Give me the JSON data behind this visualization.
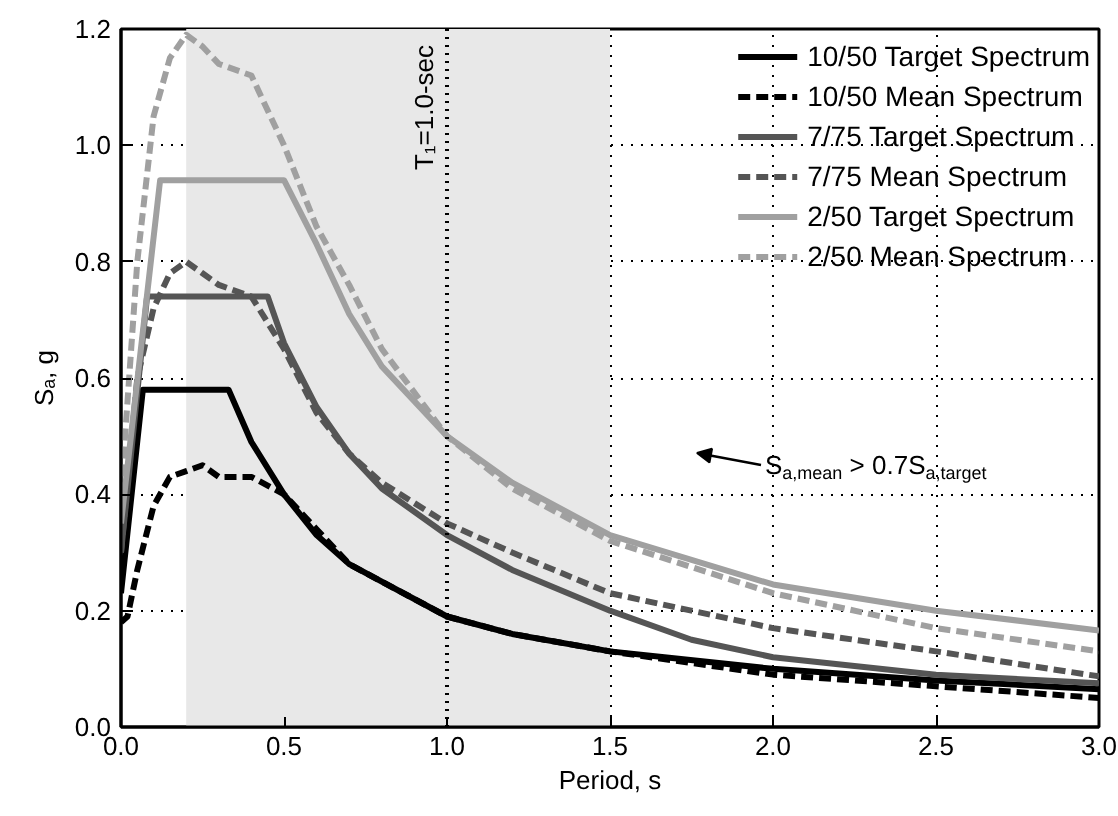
{
  "chart_data": {
    "type": "line",
    "xlabel": "Period, s",
    "ylabel": "Sₐ, g",
    "xlim": [
      0,
      3
    ],
    "ylim": [
      0,
      1.2
    ],
    "xticks": [
      {
        "value": 0,
        "label": "0.0"
      },
      {
        "value": 0.5,
        "label": "0.5"
      },
      {
        "value": 1,
        "label": "1.0"
      },
      {
        "value": 1.5,
        "label": "1.5"
      },
      {
        "value": 2,
        "label": "2.0"
      },
      {
        "value": 2.5,
        "label": "2.5"
      },
      {
        "value": 3,
        "label": "3.0"
      }
    ],
    "yticks": [
      {
        "value": 0,
        "label": "0.0"
      },
      {
        "value": 0.2,
        "label": "0.2"
      },
      {
        "value": 0.4,
        "label": "0.4"
      },
      {
        "value": 0.6,
        "label": "0.6"
      },
      {
        "value": 0.8,
        "label": "0.8"
      },
      {
        "value": 1,
        "label": "1.0"
      },
      {
        "value": 1.2,
        "label": "1.2"
      }
    ],
    "grid": true,
    "legend": "top right",
    "bands": [
      {
        "axis": "x",
        "from": 0.2,
        "to": 1.5,
        "color": "#e8e8e8"
      }
    ],
    "ref_lines": [
      {
        "axis": "x",
        "value": 1,
        "label": "T₁=1.0-sec",
        "line_style": "dotted",
        "color": "#000000"
      }
    ],
    "annotations": [
      "S$_{a,mean}$ > 0.7S$_{a,target}$"
    ],
    "series": [
      {
        "name": "10/50 Target Spectrum",
        "color": "#000000",
        "line_style": "solid",
        "x": [
          0,
          0.067,
          0.33,
          0.4,
          0.5,
          0.6,
          0.7,
          0.8,
          1.0,
          1.2,
          1.5,
          2.0,
          2.5,
          3.0
        ],
        "values": [
          0.23,
          0.58,
          0.58,
          0.49,
          0.4,
          0.33,
          0.28,
          0.25,
          0.19,
          0.16,
          0.13,
          0.1,
          0.08,
          0.065
        ]
      },
      {
        "name": "10/50 Mean Spectrum",
        "color": "#000000",
        "line_style": "dashed",
        "x": [
          0,
          0.02,
          0.05,
          0.1,
          0.15,
          0.2,
          0.25,
          0.3,
          0.4,
          0.5,
          0.6,
          0.7,
          0.8,
          1.0,
          1.2,
          1.5,
          2.0,
          2.5,
          3.0
        ],
        "values": [
          0.18,
          0.19,
          0.27,
          0.38,
          0.43,
          0.44,
          0.45,
          0.43,
          0.43,
          0.4,
          0.34,
          0.28,
          0.25,
          0.19,
          0.16,
          0.13,
          0.09,
          0.07,
          0.05
        ]
      },
      {
        "name": "7/75 Target Spectrum",
        "color": "#555555",
        "line_style": "solid",
        "x": [
          0,
          0.08,
          0.45,
          0.5,
          0.6,
          0.7,
          0.8,
          1.0,
          1.2,
          1.5,
          1.75,
          2.0,
          2.5,
          3.0
        ],
        "values": [
          0.3,
          0.74,
          0.74,
          0.66,
          0.55,
          0.47,
          0.41,
          0.33,
          0.27,
          0.2,
          0.15,
          0.12,
          0.09,
          0.075
        ]
      },
      {
        "name": "7/75 Mean Spectrum",
        "color": "#555555",
        "line_style": "dashed",
        "x": [
          0,
          0.05,
          0.1,
          0.15,
          0.2,
          0.25,
          0.3,
          0.4,
          0.5,
          0.6,
          0.7,
          0.8,
          1.0,
          1.2,
          1.5,
          2.0,
          2.5,
          3.0
        ],
        "values": [
          0.3,
          0.6,
          0.72,
          0.78,
          0.8,
          0.78,
          0.76,
          0.74,
          0.65,
          0.54,
          0.47,
          0.42,
          0.35,
          0.3,
          0.23,
          0.17,
          0.13,
          0.087
        ]
      },
      {
        "name": "2/50 Target Spectrum",
        "color": "#a0a0a0",
        "line_style": "solid",
        "x": [
          0,
          0.12,
          0.5,
          0.6,
          0.7,
          0.8,
          1.0,
          1.2,
          1.5,
          2.0,
          2.5,
          3.0
        ],
        "values": [
          0.35,
          0.94,
          0.94,
          0.83,
          0.71,
          0.62,
          0.5,
          0.42,
          0.33,
          0.245,
          0.2,
          0.166
        ]
      },
      {
        "name": "2/50 Mean Spectrum",
        "color": "#a0a0a0",
        "line_style": "dashed",
        "x": [
          0,
          0.05,
          0.1,
          0.15,
          0.2,
          0.25,
          0.3,
          0.4,
          0.5,
          0.55,
          0.6,
          0.7,
          0.8,
          1.0,
          1.2,
          1.5,
          2.0,
          2.5,
          3.0
        ],
        "values": [
          0.4,
          0.8,
          1.05,
          1.15,
          1.19,
          1.17,
          1.14,
          1.12,
          1.0,
          0.93,
          0.86,
          0.76,
          0.65,
          0.5,
          0.41,
          0.32,
          0.23,
          0.17,
          0.13
        ]
      }
    ]
  }
}
